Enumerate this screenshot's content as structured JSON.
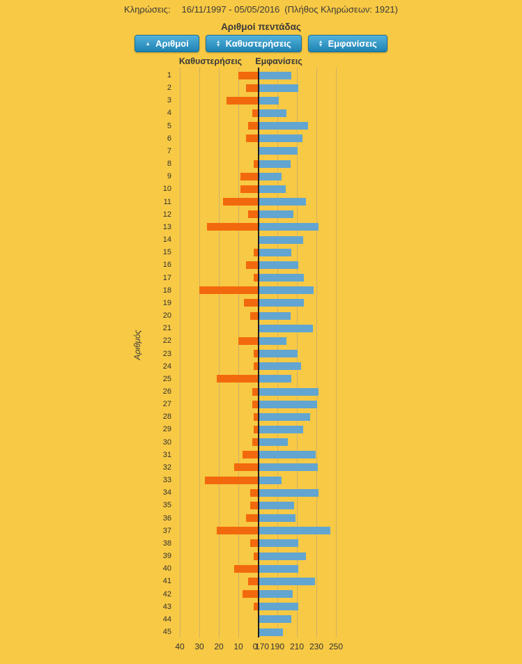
{
  "colors": {
    "background": "#F8C944",
    "delay_bar": "#F2690D",
    "appearance_bar": "#62A5D1",
    "button_gradient_top": "#54B2DC",
    "button_gradient_bottom": "#1E82B2",
    "button_border": "#1A6F99",
    "button_text": "#FFFFFF",
    "gridline": "#C8C8C8",
    "centerline": "#1B1B1B",
    "text": "#3A3A3A"
  },
  "header": {
    "draws_label": "Κληρώσεις:",
    "draws_range": "16/11/1997 - 05/05/2016",
    "draws_count": "(Πλήθος Κληρώσεων: 1921)"
  },
  "chart": {
    "title": "Αριθμοί πεντάδας",
    "sort_buttons": [
      {
        "label": "Αριθμοί",
        "icon": "sort-asc-triangle-icon"
      },
      {
        "label": "Καθυστερήσεις",
        "icon": "sort-both-triangles-icon"
      },
      {
        "label": "Εμφανίσεις",
        "icon": "sort-both-triangles-icon"
      }
    ],
    "column_header_left": "Καθυστερήσεις",
    "column_header_right": "Εμφανίσεις",
    "y_axis_label": "Αριθμός"
  },
  "chart_data": {
    "type": "bar",
    "orientation": "horizontal-diverging",
    "title": "Αριθμοί πεντάδας",
    "ylabel": "Αριθμός",
    "grid": true,
    "categories": [
      1,
      2,
      3,
      4,
      5,
      6,
      7,
      8,
      9,
      10,
      11,
      12,
      13,
      14,
      15,
      16,
      17,
      18,
      19,
      20,
      21,
      22,
      23,
      24,
      25,
      26,
      27,
      28,
      29,
      30,
      31,
      32,
      33,
      34,
      35,
      36,
      37,
      38,
      39,
      40,
      41,
      42,
      43,
      44,
      45
    ],
    "series": [
      {
        "name": "Καθυστερήσεις",
        "direction": "left",
        "color": "#F2690D",
        "axis_ticks": [
          40,
          30,
          20,
          10,
          0
        ],
        "axis_origin": 0,
        "units_per_gridline": 10,
        "values": [
          10,
          6,
          16,
          3,
          5,
          6,
          0,
          2,
          9,
          9,
          18,
          5,
          26,
          0,
          2,
          6,
          2,
          30,
          7,
          4,
          0,
          10,
          2,
          2,
          21,
          3,
          3,
          2,
          2,
          3,
          8,
          12,
          27,
          4,
          4,
          6,
          21,
          4,
          2,
          12,
          5,
          8,
          2,
          0,
          0
        ]
      },
      {
        "name": "Εμφανίσεις",
        "direction": "right",
        "color": "#62A5D1",
        "axis_ticks": [
          170,
          190,
          210,
          230,
          250
        ],
        "axis_origin": 170,
        "units_per_gridline": 20,
        "values": [
          203,
          210,
          190,
          198,
          220,
          214,
          209,
          202,
          193,
          197,
          218,
          205,
          231,
          215,
          203,
          210,
          216,
          226,
          216,
          202,
          225,
          198,
          209,
          213,
          203,
          231,
          229,
          222,
          215,
          199,
          228,
          230,
          193,
          231,
          206,
          207,
          243,
          210,
          218,
          210,
          227,
          204,
          210,
          203,
          194
        ]
      }
    ]
  }
}
